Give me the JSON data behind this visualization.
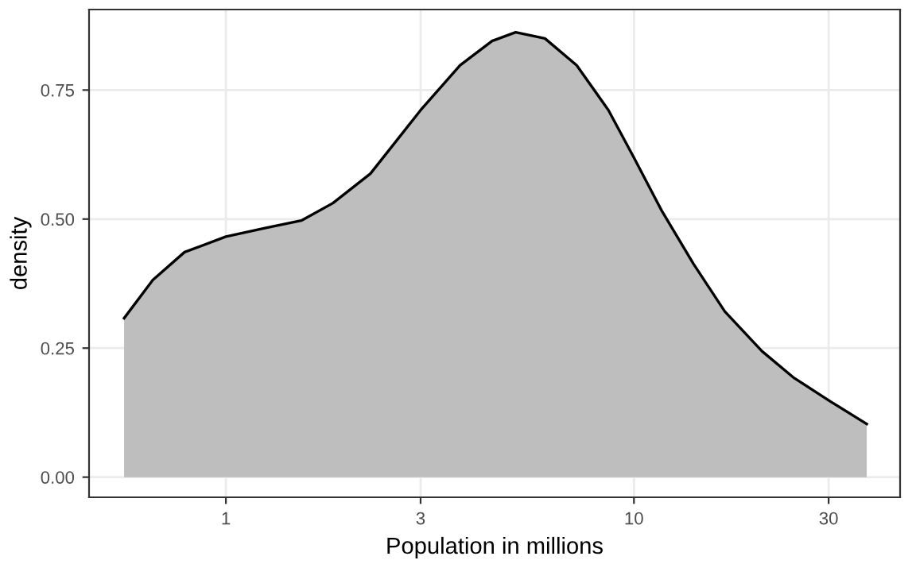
{
  "chart_data": {
    "type": "area",
    "xlabel": "Population in millions",
    "ylabel": "density",
    "log": "x",
    "x": [
      0.563,
      0.662,
      0.792,
      1,
      1.24,
      1.53,
      1.83,
      2.26,
      3.0,
      3.75,
      4.49,
      5.13,
      6.05,
      7.24,
      8.66,
      10,
      11.7,
      14.0,
      16.7,
      20.6,
      24.7,
      30.4,
      37.2
    ],
    "series": [
      {
        "color": "#bebebe",
        "values": [
          0.308,
          0.382,
          0.436,
          0.466,
          0.482,
          0.497,
          0.531,
          0.588,
          0.711,
          0.798,
          0.845,
          0.862,
          0.85,
          0.798,
          0.711,
          0.619,
          0.516,
          0.413,
          0.321,
          0.244,
          0.192,
          0.146,
          0.103
        ]
      }
    ],
    "xlim": [
      0.462,
      44.9
    ],
    "xticks": [
      1,
      3,
      10,
      30
    ],
    "ylim": [
      -0.039,
      0.906
    ],
    "yticks": [
      {
        "value": 0,
        "label": "0.00"
      },
      0.25,
      {
        "value": 0.5,
        "label": "0.50"
      },
      0.75
    ],
    "grid": true
  }
}
